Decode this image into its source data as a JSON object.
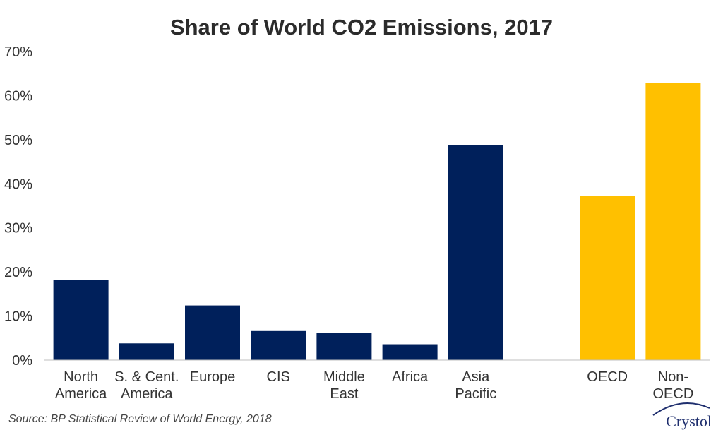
{
  "chart_data": {
    "type": "bar",
    "title": "Share of World CO2 Emissions, 2017",
    "xlabel": "",
    "ylabel": "",
    "ylim": [
      0,
      70
    ],
    "yticks": [
      "0%",
      "10%",
      "20%",
      "30%",
      "40%",
      "50%",
      "60%",
      "70%"
    ],
    "ytick_values": [
      0,
      10,
      20,
      30,
      40,
      50,
      60,
      70
    ],
    "grid": false,
    "groups": [
      {
        "color": "#00205b",
        "bars": [
          {
            "label": [
              "North",
              "America"
            ],
            "value": 18.2
          },
          {
            "label": [
              "S. & Cent.",
              "America"
            ],
            "value": 3.8
          },
          {
            "label": [
              "Europe"
            ],
            "value": 12.4
          },
          {
            "label": [
              "CIS"
            ],
            "value": 6.6
          },
          {
            "label": [
              "Middle",
              "East"
            ],
            "value": 6.2
          },
          {
            "label": [
              "Africa"
            ],
            "value": 3.6
          },
          {
            "label": [
              "Asia",
              "Pacific"
            ],
            "value": 48.8
          }
        ]
      },
      {
        "color": "#ffc000",
        "bars": [
          {
            "label": [
              "OECD"
            ],
            "value": 37.2
          },
          {
            "label": [
              "Non-",
              "OECD"
            ],
            "value": 62.8
          }
        ]
      }
    ]
  },
  "source": "Source: BP Statistical Review of World Energy, 2018",
  "logo": {
    "text": "Crystol",
    "color": "#1f2f6e"
  }
}
